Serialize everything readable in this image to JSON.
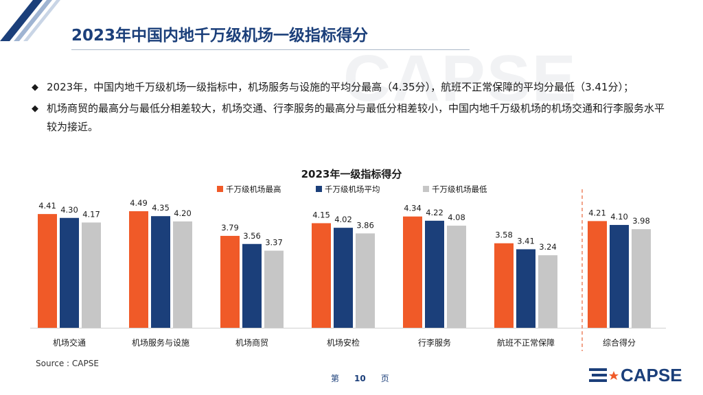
{
  "header": {
    "title": "2023年中国内地千万级机场一级指标得分"
  },
  "watermark": "CAPSE",
  "bullets": [
    "2023年，中国内地千万级机场一级指标中，机场服务与设施的平均分最高（4.35分），航班不正常保障的平均分最低（3.41分）；",
    "机场商贸的最高分与最低分相差较大，机场交通、行李服务的最高分与最低分相差较小，中国内地千万级机场的机场交通和行李服务水平较为接近。"
  ],
  "colors": {
    "brand": "#1b3f7a",
    "series": [
      "#f05a28",
      "#1b3f7a",
      "#c6c6c6"
    ],
    "divider": "#e8643a"
  },
  "chart_data": {
    "type": "bar",
    "title": "2023年一级指标得分",
    "categories": [
      "机场交通",
      "机场服务与设施",
      "机场商贸",
      "机场安检",
      "行李服务",
      "航班不正常保障",
      "综合得分"
    ],
    "series": [
      {
        "name": "千万级机场最高",
        "values": [
          4.41,
          4.49,
          3.79,
          4.15,
          4.34,
          3.58,
          4.21
        ]
      },
      {
        "name": "千万级机场平均",
        "values": [
          4.3,
          4.35,
          3.56,
          4.02,
          4.22,
          3.41,
          4.1
        ]
      },
      {
        "name": "千万级机场最低",
        "values": [
          4.17,
          4.2,
          3.37,
          3.86,
          4.08,
          3.24,
          3.98
        ]
      }
    ],
    "ylim": [
      0,
      4.6
    ],
    "grid": false,
    "legend": "top",
    "data_labels": true,
    "divider_before_last": true
  },
  "footer": {
    "source": "Source : CAPSE",
    "page_prefix": "第",
    "page_number": "10",
    "page_suffix": "页",
    "logo_text": "CAPSE"
  }
}
